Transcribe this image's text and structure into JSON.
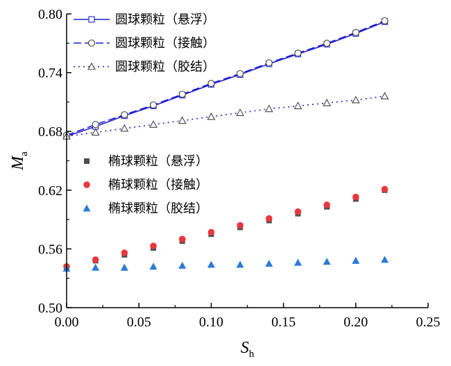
{
  "chart_data": {
    "type": "scatter",
    "xlabel": "S",
    "xlabel_sub": "h",
    "ylabel": "M",
    "ylabel_sub": "a",
    "xlim": [
      0.0,
      0.25
    ],
    "ylim": [
      0.5,
      0.8
    ],
    "x_ticks": [
      "0.00",
      "0.05",
      "0.10",
      "0.15",
      "0.20",
      "0.25"
    ],
    "y_ticks": [
      "0.50",
      "0.56",
      "0.62",
      "0.68",
      "0.74",
      "0.80"
    ],
    "x_tick_values": [
      0.0,
      0.05,
      0.1,
      0.15,
      0.2,
      0.25
    ],
    "y_tick_values": [
      0.5,
      0.56,
      0.62,
      0.68,
      0.74,
      0.8
    ],
    "grid": false,
    "series": [
      {
        "name": "圆球颗粒（悬浮）",
        "kind": "line",
        "marker": "square-open",
        "line_style": "solid",
        "color": "#1f1fd1",
        "x": [
          0.0,
          0.02,
          0.04,
          0.06,
          0.08,
          0.1,
          0.12,
          0.14,
          0.16,
          0.18,
          0.2,
          0.22
        ],
        "y": [
          0.675,
          0.685,
          0.696,
          0.706,
          0.717,
          0.728,
          0.738,
          0.749,
          0.759,
          0.769,
          0.78,
          0.792
        ]
      },
      {
        "name": "圆球颗粒（接触）",
        "kind": "line",
        "marker": "circle-open",
        "line_style": "dashed",
        "color": "#1f1fd1",
        "x": [
          0.0,
          0.02,
          0.04,
          0.06,
          0.08,
          0.1,
          0.12,
          0.14,
          0.16,
          0.18,
          0.2,
          0.22
        ],
        "y": [
          0.676,
          0.687,
          0.697,
          0.707,
          0.718,
          0.729,
          0.739,
          0.75,
          0.76,
          0.77,
          0.781,
          0.793
        ]
      },
      {
        "name": "圆球颗粒（胶结）",
        "kind": "line",
        "marker": "triangle-open",
        "line_style": "dotted",
        "color": "#1f1fd1",
        "x": [
          0.0,
          0.02,
          0.04,
          0.06,
          0.08,
          0.1,
          0.12,
          0.14,
          0.16,
          0.18,
          0.2,
          0.22
        ],
        "y": [
          0.675,
          0.679,
          0.683,
          0.687,
          0.691,
          0.695,
          0.699,
          0.703,
          0.706,
          0.709,
          0.712,
          0.716
        ]
      },
      {
        "name": "椭球颗粒（悬浮）",
        "kind": "scatter",
        "marker": "square-filled",
        "color": "#4d4d4d",
        "x": [
          0.0,
          0.02,
          0.04,
          0.06,
          0.08,
          0.1,
          0.12,
          0.14,
          0.16,
          0.18,
          0.2,
          0.22
        ],
        "y": [
          0.541,
          0.548,
          0.554,
          0.561,
          0.568,
          0.575,
          0.582,
          0.589,
          0.596,
          0.603,
          0.611,
          0.62
        ]
      },
      {
        "name": "椭球颗粒（接触）",
        "kind": "scatter",
        "marker": "circle-filled",
        "color": "#e8383d",
        "x": [
          0.0,
          0.02,
          0.04,
          0.06,
          0.08,
          0.1,
          0.12,
          0.14,
          0.16,
          0.18,
          0.2,
          0.22
        ],
        "y": [
          0.542,
          0.549,
          0.556,
          0.563,
          0.57,
          0.577,
          0.584,
          0.591,
          0.598,
          0.605,
          0.613,
          0.621
        ]
      },
      {
        "name": "椭球颗粒（胶结）",
        "kind": "scatter",
        "marker": "triangle-filled",
        "color": "#2a7ad6",
        "x": [
          0.0,
          0.02,
          0.04,
          0.06,
          0.08,
          0.1,
          0.12,
          0.14,
          0.16,
          0.18,
          0.2,
          0.22
        ],
        "y": [
          0.54,
          0.541,
          0.541,
          0.542,
          0.543,
          0.544,
          0.544,
          0.545,
          0.546,
          0.547,
          0.548,
          0.549
        ]
      }
    ],
    "legends": [
      {
        "placement": "top-left",
        "entries": [
          0,
          1,
          2
        ]
      },
      {
        "placement": "middle-left",
        "entries": [
          3,
          4,
          5
        ]
      }
    ]
  }
}
